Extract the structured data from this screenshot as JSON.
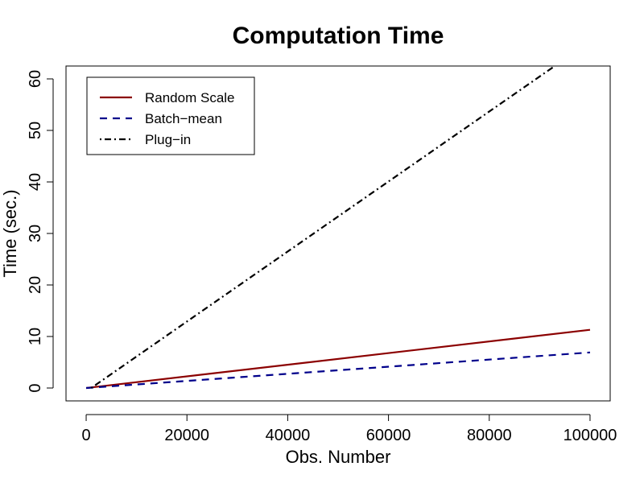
{
  "chart_data": {
    "type": "line",
    "title": "Computation Time",
    "xlabel": "Obs. Number",
    "ylabel": "Time (sec.)",
    "xlim": [
      -4000,
      104000
    ],
    "ylim": [
      -2.5,
      62.5
    ],
    "x_ticks": [
      0,
      20000,
      40000,
      60000,
      80000,
      100000
    ],
    "x_tick_labels": [
      "0",
      "20000",
      "40000",
      "60000",
      "80000",
      "100000"
    ],
    "y_ticks": [
      0,
      10,
      20,
      30,
      40,
      50,
      60
    ],
    "y_tick_labels": [
      "0",
      "10",
      "20",
      "30",
      "40",
      "50",
      "60"
    ],
    "grid": false,
    "legend_position": "top-left",
    "series": [
      {
        "name": "Random Scale",
        "color": "#8b0000",
        "line_style": "solid",
        "x": [
          0,
          100000
        ],
        "y": [
          0,
          11.3
        ]
      },
      {
        "name": "Batch−mean",
        "color": "#00008b",
        "line_style": "dashed",
        "x": [
          0,
          100000
        ],
        "y": [
          0,
          6.9
        ]
      },
      {
        "name": "Plug−in",
        "color": "#000000",
        "line_style": "dotdash",
        "x": [
          1000,
          93000
        ],
        "y": [
          0,
          62.5
        ]
      }
    ]
  }
}
